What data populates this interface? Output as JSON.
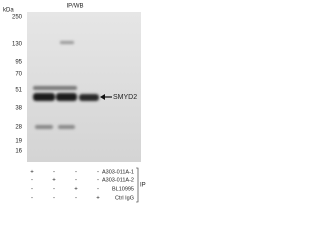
{
  "header": {
    "title": "IP/WB"
  },
  "markers": {
    "unit": "kDa",
    "labels": [
      "250",
      "130",
      "95",
      "70",
      "51",
      "38",
      "28",
      "19",
      "16"
    ]
  },
  "band_label": "SMYD2",
  "table": {
    "rows": [
      {
        "name": "A303-011A-1",
        "signs": [
          "+",
          "-",
          "-",
          "-"
        ]
      },
      {
        "name": "A303-011A-2",
        "signs": [
          "-",
          "+",
          "-",
          "-"
        ]
      },
      {
        "name": "BL10995",
        "signs": [
          "-",
          "-",
          "+",
          "-"
        ]
      },
      {
        "name": "Ctrl IgG",
        "signs": [
          "-",
          "-",
          "-",
          "+"
        ]
      }
    ],
    "group_label": "IP"
  }
}
